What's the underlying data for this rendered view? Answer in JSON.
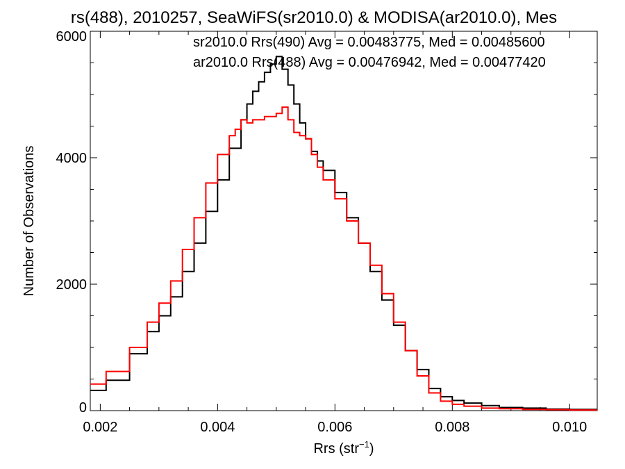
{
  "chart_data": {
    "type": "line",
    "title": "rs(488), 2010257, SeaWiFS(sr2010.0) & MODISA(ar2010.0), Mes",
    "xlabel": "Rrs (str",
    "xlabel_sup": "−1",
    "xlabel_close": ")",
    "ylabel": "Number of Observations",
    "xlim": [
      0.00183,
      0.01047
    ],
    "ylim": [
      0,
      6000
    ],
    "x_ticks": [
      0.002,
      0.004,
      0.006,
      0.008,
      0.01
    ],
    "x_tick_labels": [
      "0.002",
      "0.004",
      "0.006",
      "0.008",
      "0.010"
    ],
    "y_ticks": [
      0,
      2000,
      4000,
      6000
    ],
    "y_tick_labels": [
      "0",
      "2000",
      "4000",
      "6000"
    ],
    "grid": false,
    "series": [
      {
        "name": "sr2010.0 Rrs(490)",
        "legend_text": "sr2010.0 Rrs(490) Avg = 0.00483775, Med = 0.00485600",
        "color": "#000000",
        "x": [
          0.00183,
          0.0021,
          0.0025,
          0.0028,
          0.003,
          0.0032,
          0.0034,
          0.0036,
          0.0038,
          0.004,
          0.0042,
          0.0044,
          0.0045,
          0.0046,
          0.0047,
          0.0048,
          0.0049,
          0.005,
          0.0051,
          0.0052,
          0.0053,
          0.0054,
          0.0055,
          0.0056,
          0.0057,
          0.0058,
          0.006,
          0.0062,
          0.0064,
          0.0066,
          0.0068,
          0.007,
          0.0072,
          0.0074,
          0.0076,
          0.0078,
          0.008,
          0.0082,
          0.0085,
          0.0088,
          0.0092,
          0.0096,
          0.01,
          0.01047
        ],
        "y": [
          320,
          480,
          900,
          1250,
          1500,
          1800,
          2200,
          2650,
          3150,
          3650,
          4150,
          4600,
          4850,
          5050,
          5200,
          5350,
          5480,
          5600,
          5400,
          5150,
          4850,
          4550,
          4300,
          4100,
          3950,
          3800,
          3450,
          3050,
          2650,
          2200,
          1750,
          1350,
          950,
          650,
          350,
          220,
          160,
          120,
          80,
          50,
          40,
          25,
          20,
          20
        ]
      },
      {
        "name": "ar2010.0 Rrs(488)",
        "legend_text": "ar2010.0 Rrs(488) Avg = 0.00476942, Med = 0.00477420",
        "color": "#ff0000",
        "x": [
          0.00183,
          0.0021,
          0.0025,
          0.0028,
          0.003,
          0.0032,
          0.0034,
          0.0036,
          0.0038,
          0.004,
          0.0042,
          0.0043,
          0.0044,
          0.0045,
          0.0046,
          0.0047,
          0.0048,
          0.0049,
          0.005,
          0.0051,
          0.0052,
          0.0053,
          0.0054,
          0.0055,
          0.0056,
          0.0057,
          0.0058,
          0.006,
          0.0062,
          0.0064,
          0.0066,
          0.0068,
          0.007,
          0.0072,
          0.0074,
          0.0076,
          0.0078,
          0.008,
          0.0082,
          0.0085,
          0.0088,
          0.0092,
          0.0096,
          0.01,
          0.01047
        ],
        "y": [
          420,
          620,
          1000,
          1400,
          1700,
          2050,
          2550,
          3050,
          3600,
          4050,
          4350,
          4450,
          4600,
          4550,
          4600,
          4600,
          4650,
          4650,
          4700,
          4800,
          4600,
          4400,
          4350,
          4300,
          4050,
          3850,
          3650,
          3350,
          3000,
          2650,
          2300,
          1850,
          1400,
          950,
          550,
          280,
          150,
          100,
          70,
          40,
          30,
          20,
          15,
          10,
          10
        ]
      }
    ]
  }
}
